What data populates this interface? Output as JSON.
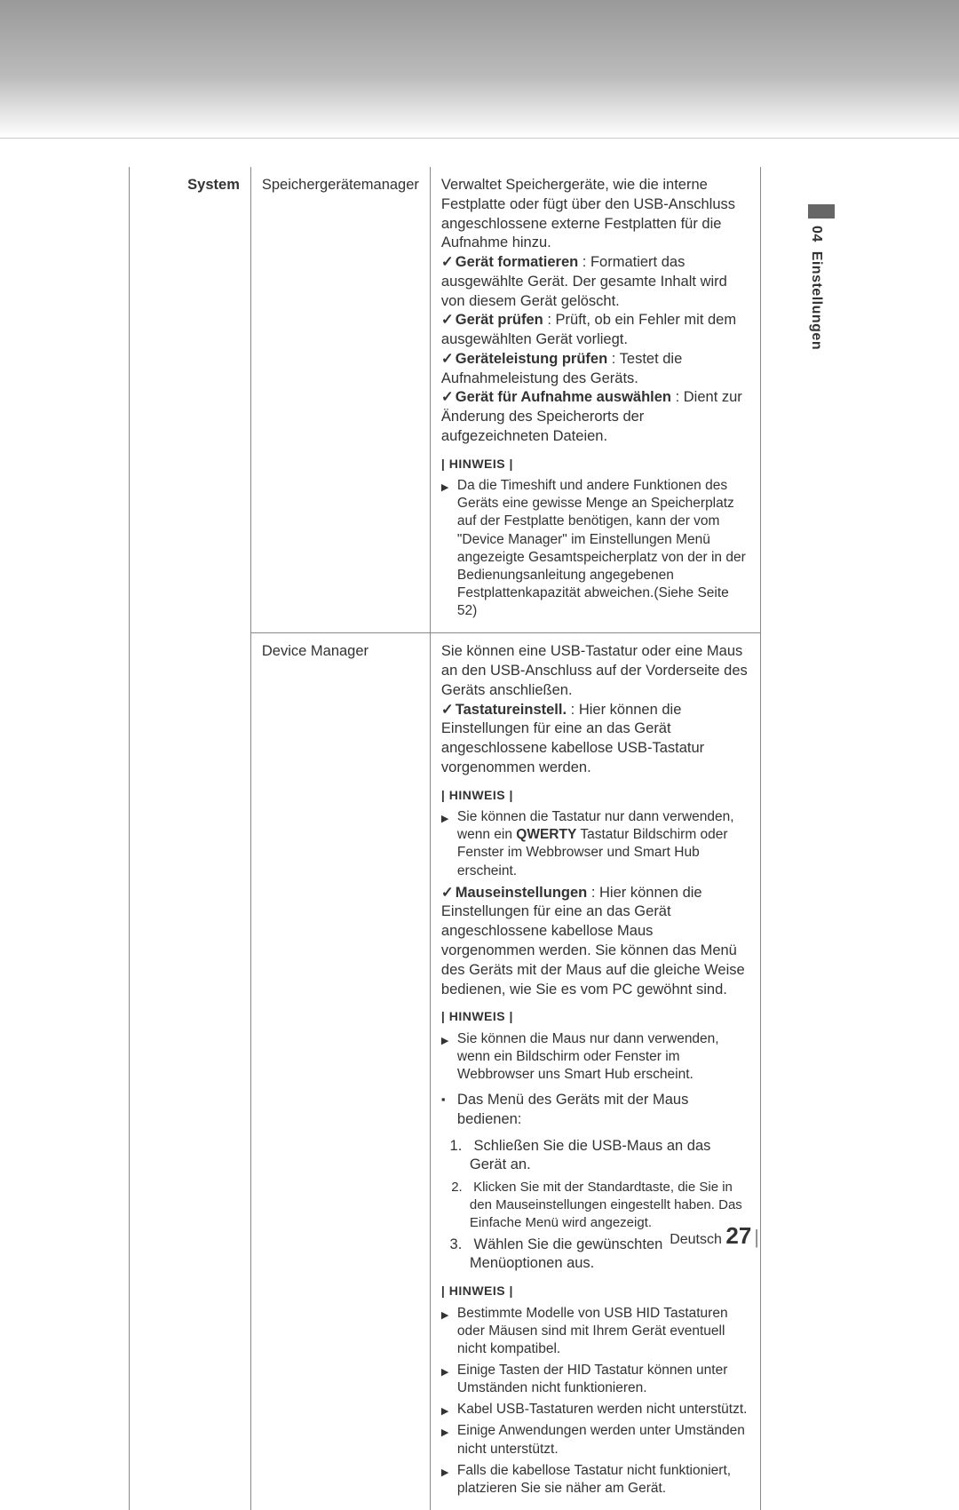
{
  "section": "System",
  "sidebar": {
    "chapter": "04",
    "title": "Einstellungen"
  },
  "footer": {
    "lang": "Deutsch",
    "page": "27"
  },
  "rows": [
    {
      "label": "Speichergerätemanager",
      "intro": "Verwaltet Speichergeräte, wie die interne Festplatte oder fügt über den USB-Anschluss angeschlossene externe Festplatten für die Aufnahme hinzu.",
      "items": [
        {
          "bold": "Gerät formatieren",
          "rest": " : Formatiert das ausgewählte Gerät. Der gesamte Inhalt wird von diesem Gerät gelöscht."
        },
        {
          "bold": "Gerät prüfen",
          "rest": " : Prüft, ob ein Fehler mit dem ausgewählten Gerät vorliegt."
        },
        {
          "bold": "Geräteleistung prüfen",
          "rest": " : Testet die Aufnahmeleistung des Geräts."
        },
        {
          "bold": "Gerät für Aufnahme auswählen",
          "rest": " : Dient zur Änderung des Speicherorts der aufgezeichneten Dateien."
        }
      ],
      "hinweis_label": "| HINWEIS |",
      "notes1": [
        "Da die Timeshift und andere Funktionen des Geräts eine gewisse Menge an Speicherplatz auf der Festplatte benötigen, kann der vom \"Device Manager\" im Einstellungen Menü angezeigte Gesamtspeicherplatz von der in der Bedienungsanleitung angegebenen Festplattenkapazität abweichen.(Siehe Seite 52)"
      ]
    },
    {
      "label": "Device Manager",
      "intro": "Sie können eine USB-Tastatur oder eine Maus an den USB-Anschluss auf der Vorderseite des Geräts anschließen.",
      "item_a": {
        "bold": "Tastatureinstell.",
        "rest": " : Hier können die Einstellungen für eine an das Gerät angeschlossene kabellose USB-Tastatur vorgenommen werden."
      },
      "hinweis_label": "| HINWEIS |",
      "notes_a": [
        {
          "pre": "Sie können die Tastatur nur dann verwenden, wenn ein ",
          "bold": "QWERTY",
          "post": " Tastatur Bildschirm oder Fenster im Webbrowser und Smart Hub erscheint."
        }
      ],
      "item_b": {
        "bold": "Mauseinstellungen",
        "rest": " : Hier können die Einstellungen für eine an das Gerät angeschlossene kabellose Maus vorgenommen werden. Sie können das Menü des Geräts mit der Maus auf die gleiche Weise bedienen, wie Sie es vom PC gewöhnt sind."
      },
      "notes_b": [
        "Sie können die Maus nur dann verwenden, wenn ein Bildschirm oder Fenster im Webbrowser uns Smart Hub erscheint."
      ],
      "subhead": "Das Menü des Geräts mit der Maus bedienen:",
      "steps": [
        {
          "t": "Schließen Sie die USB-Maus an das Gerät an."
        },
        {
          "t": "Klicken Sie mit der Standardtaste, die Sie in den Mauseinstellungen eingestellt haben. Das Einfache Menü wird angezeigt.",
          "small": true
        },
        {
          "t": "Wählen Sie die gewünschten Menüoptionen aus."
        }
      ],
      "notes_c": [
        "Bestimmte Modelle von USB HID Tastaturen oder Mäusen sind mit Ihrem Gerät eventuell nicht kompatibel.",
        "Einige Tasten der HID Tastatur können unter Umständen nicht funktionieren.",
        "Kabel USB-Tastaturen werden nicht unterstützt.",
        "Einige Anwendungen werden unter Umständen nicht unterstützt.",
        "Falls die kabellose Tastatur nicht funktioniert, platzieren Sie sie näher am Gerät."
      ]
    }
  ]
}
